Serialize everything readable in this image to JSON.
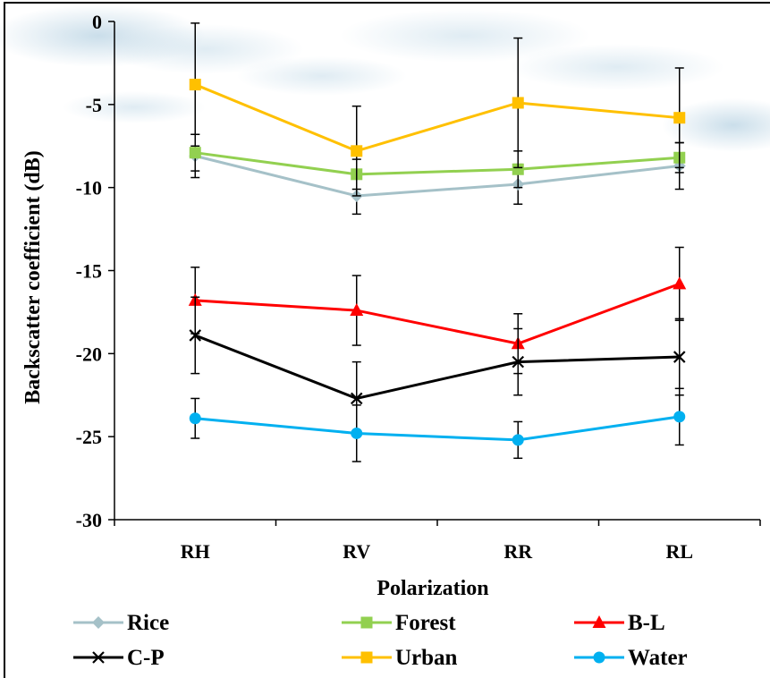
{
  "chart_data": {
    "type": "line",
    "title": "",
    "xlabel": "Polarization",
    "ylabel": "Backscatter coefficient (dB)",
    "categories": [
      "RH",
      "RV",
      "RR",
      "RL"
    ],
    "ylim": [
      -30,
      0
    ],
    "yticks": [
      0,
      -5,
      -10,
      -15,
      -20,
      -25,
      -30
    ],
    "ytick_labels": [
      "0",
      "-5",
      "-10",
      "-15",
      "-20",
      "-25",
      "-30"
    ],
    "grid": false,
    "legend_position": "bottom",
    "error_bars": true,
    "series": [
      {
        "name": "Rice",
        "color": "#a5c1c8",
        "marker": "diamond",
        "values": [
          -8.1,
          -10.5,
          -9.8,
          -8.7
        ],
        "error": [
          1.3,
          1.1,
          1.2,
          1.4
        ]
      },
      {
        "name": "Forest",
        "color": "#92d050",
        "marker": "square",
        "values": [
          -7.9,
          -9.2,
          -8.9,
          -8.2
        ],
        "error": [
          1.1,
          0.9,
          1.1,
          0.9
        ]
      },
      {
        "name": "B-L",
        "color": "#ff0000",
        "marker": "triangle",
        "values": [
          -16.8,
          -17.4,
          -19.4,
          -15.8
        ],
        "error": [
          2.0,
          2.1,
          1.8,
          2.2
        ]
      },
      {
        "name": "C-P",
        "color": "#000000",
        "marker": "x",
        "values": [
          -18.9,
          -22.7,
          -20.5,
          -20.2
        ],
        "error": [
          2.3,
          2.2,
          2.0,
          2.3
        ]
      },
      {
        "name": "Urban",
        "color": "#ffc000",
        "marker": "square",
        "values": [
          -3.8,
          -7.8,
          -4.9,
          -5.8
        ],
        "error": [
          3.7,
          2.7,
          3.9,
          3.0
        ]
      },
      {
        "name": "Water",
        "color": "#00b0f0",
        "marker": "circle",
        "values": [
          -23.9,
          -24.8,
          -25.2,
          -23.8
        ],
        "error": [
          1.2,
          1.7,
          1.1,
          1.7
        ]
      }
    ]
  }
}
